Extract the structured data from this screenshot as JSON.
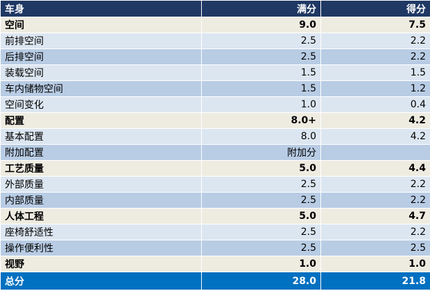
{
  "header": [
    "车身",
    "满分",
    "得分"
  ],
  "rows": [
    {
      "label": "空间",
      "full": "9.0",
      "score": "7.5",
      "bold": true
    },
    {
      "label": "前排空间",
      "full": "2.5",
      "score": "2.2"
    },
    {
      "label": "后排空间",
      "full": "2.5",
      "score": "2.2"
    },
    {
      "label": "装载空间",
      "full": "1.5",
      "score": "1.5"
    },
    {
      "label": "车内储物空间",
      "full": "1.5",
      "score": "1.2"
    },
    {
      "label": "空间变化",
      "full": "1.0",
      "score": "0.4"
    },
    {
      "label": "配置",
      "full": "8.0+",
      "score": "4.2",
      "bold": true
    },
    {
      "label": "基本配置",
      "full": "8.0",
      "score": "4.2"
    },
    {
      "label": "附加配置",
      "full": "附加分"
    },
    {
      "label": "工艺质量",
      "full": "5.0",
      "score": "4.4",
      "bold": true
    },
    {
      "label": "外部质量",
      "full": "2.5",
      "score": "2.2"
    },
    {
      "label": "内部质量",
      "full": "2.5",
      "score": "2.2"
    },
    {
      "label": "人体工程",
      "full": "5.0",
      "score": "4.7",
      "bold": true
    },
    {
      "label": "座椅舒适性",
      "full": "2.5",
      "score": "2.2"
    },
    {
      "label": "操作便利性",
      "full": "2.5",
      "score": "2.5"
    },
    {
      "label": "视野",
      "full": "1.0",
      "score": "1.0",
      "bold": true
    }
  ],
  "total": {
    "label": "总分",
    "full": "28.0",
    "score": "21.8"
  }
}
